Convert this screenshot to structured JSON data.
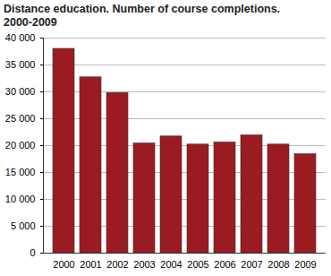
{
  "chart_data": {
    "type": "bar",
    "title": "Distance education. Number of course completions. 2000-2009",
    "categories": [
      "2000",
      "2001",
      "2002",
      "2003",
      "2004",
      "2005",
      "2006",
      "2007",
      "2008",
      "2009"
    ],
    "values": [
      38000,
      32700,
      29800,
      20400,
      21700,
      20200,
      20600,
      21900,
      20200,
      18400
    ],
    "color": "#9b1b22",
    "ylim": [
      0,
      40000
    ],
    "yticks": [
      0,
      {
        "value": 5000,
        "label": "5 000"
      },
      {
        "value": 10000,
        "label": "10 000"
      },
      {
        "value": 15000,
        "label": "15 000"
      },
      {
        "value": 20000,
        "label": "20 000"
      },
      {
        "value": 25000,
        "label": "25 000"
      },
      {
        "value": 30000,
        "label": "30 000"
      },
      {
        "value": 35000,
        "label": "35 000"
      },
      {
        "value": 40000,
        "label": "40 000"
      }
    ],
    "grid": true
  }
}
